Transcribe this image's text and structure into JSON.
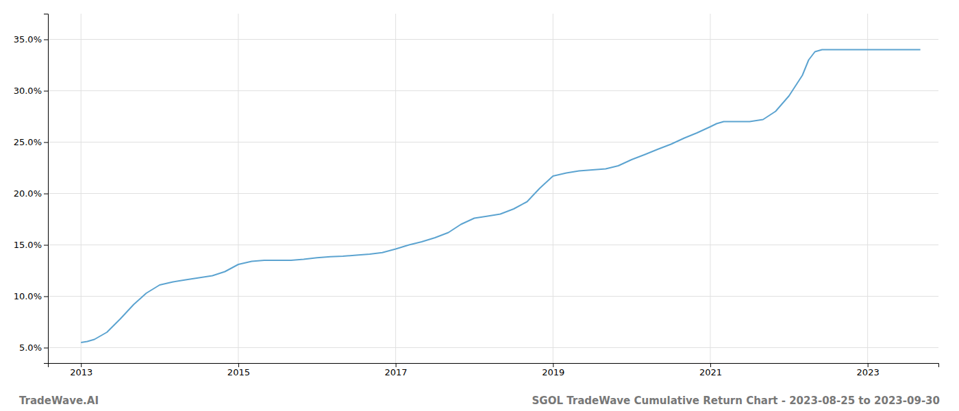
{
  "chart_data": {
    "type": "line",
    "annotations": [
      "TradeWave.AI",
      "SGOL TradeWave Cumulative Return Chart - 2023-08-25 to 2023-09-30"
    ],
    "color": "#5ba3d0",
    "grid": true,
    "xlim": [
      2012.58,
      2023.9
    ],
    "xticks": [
      2013,
      2015,
      2017,
      2019,
      2021,
      2023
    ],
    "ylim": [
      3.5,
      37.5
    ],
    "yticks": [
      {
        "value": 5.0,
        "label": "5.0%"
      },
      {
        "value": 10.0,
        "label": "10.0%"
      },
      {
        "value": 15.0,
        "label": "15.0%"
      },
      {
        "value": 20.0,
        "label": "20.0%"
      },
      {
        "value": 25.0,
        "label": "25.0%"
      },
      {
        "value": 30.0,
        "label": "30.0%"
      },
      {
        "value": 35.0,
        "label": "35.0%"
      }
    ],
    "x": [
      2013.0,
      2013.08,
      2013.17,
      2013.33,
      2013.5,
      2013.67,
      2013.83,
      2014.0,
      2014.17,
      2014.33,
      2014.5,
      2014.67,
      2014.83,
      2015.0,
      2015.17,
      2015.33,
      2015.5,
      2015.67,
      2015.83,
      2016.0,
      2016.17,
      2016.33,
      2016.5,
      2016.67,
      2016.83,
      2017.0,
      2017.17,
      2017.33,
      2017.5,
      2017.67,
      2017.83,
      2018.0,
      2018.17,
      2018.33,
      2018.5,
      2018.67,
      2018.83,
      2019.0,
      2019.17,
      2019.33,
      2019.5,
      2019.67,
      2019.83,
      2020.0,
      2020.17,
      2020.33,
      2020.5,
      2020.67,
      2020.83,
      2021.0,
      2021.08,
      2021.17,
      2021.25,
      2021.33,
      2021.5,
      2021.67,
      2021.83,
      2022.0,
      2022.17,
      2022.25,
      2022.33,
      2022.42,
      2022.5,
      2022.67,
      2022.83,
      2023.0,
      2023.17,
      2023.33,
      2023.5,
      2023.67
    ],
    "values": [
      5.5,
      5.6,
      5.8,
      6.5,
      7.8,
      9.2,
      10.3,
      11.1,
      11.4,
      11.6,
      11.8,
      12.0,
      12.4,
      13.1,
      13.4,
      13.5,
      13.5,
      13.5,
      13.6,
      13.75,
      13.85,
      13.9,
      14.0,
      14.1,
      14.25,
      14.6,
      15.0,
      15.3,
      15.7,
      16.2,
      17.0,
      17.6,
      17.8,
      18.0,
      18.5,
      19.2,
      20.5,
      21.7,
      22.0,
      22.2,
      22.3,
      22.4,
      22.7,
      23.3,
      23.8,
      24.3,
      24.8,
      25.4,
      25.9,
      26.5,
      26.8,
      27.0,
      27.0,
      27.0,
      27.0,
      27.2,
      28.0,
      29.5,
      31.5,
      33.0,
      33.8,
      34.0,
      34.0,
      34.0,
      34.0,
      34.0,
      34.0,
      34.0,
      34.0,
      34.0
    ]
  }
}
